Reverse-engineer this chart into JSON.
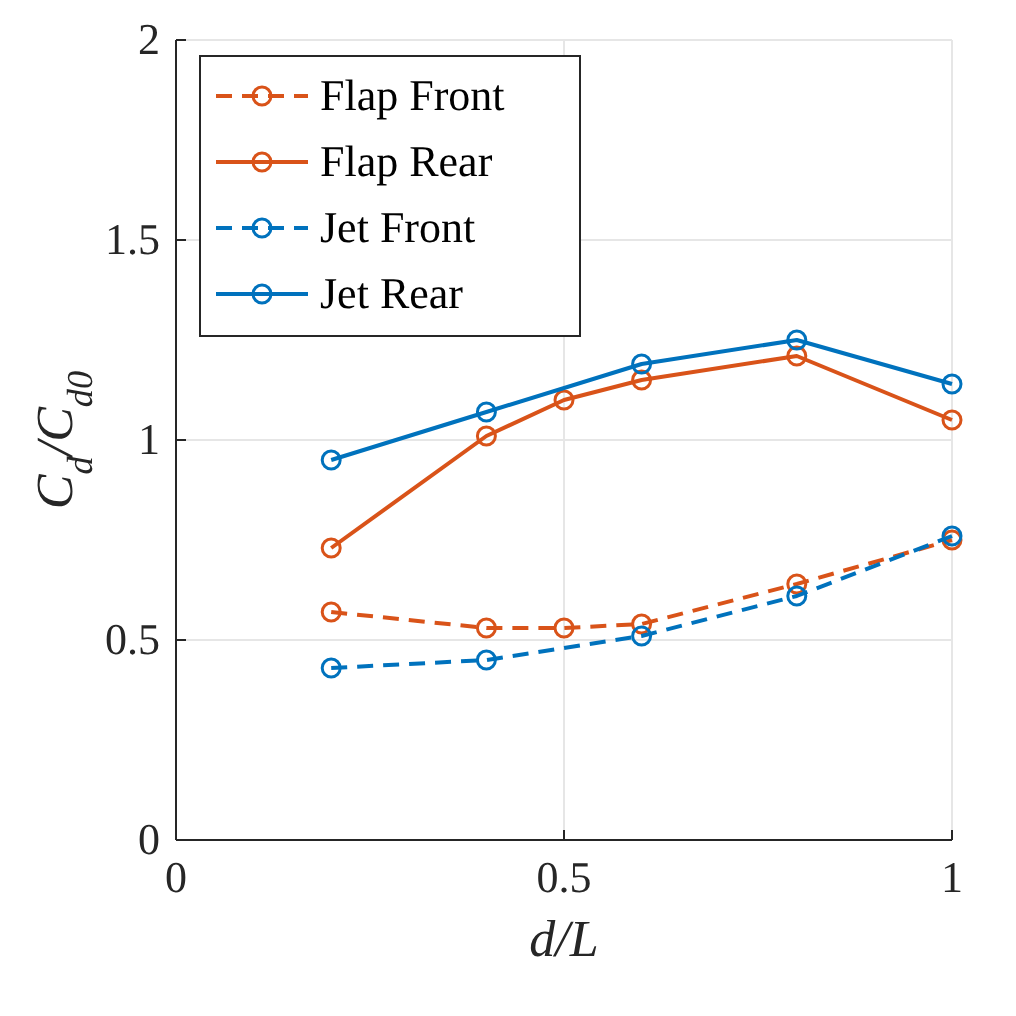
{
  "chart_data": {
    "type": "line",
    "xlabel": "d/L",
    "ylabel": "C$_{d}$/C$_{d0}$",
    "xlim": [
      0,
      1
    ],
    "ylim": [
      0,
      2
    ],
    "xticks": [
      0,
      0.5,
      1
    ],
    "yticks": [
      0,
      0.5,
      1,
      1.5,
      2
    ],
    "grid": true,
    "legend": "top left",
    "marker": "circle",
    "series": [
      {
        "name": "Flap Front",
        "color": "#d95319",
        "line_style": "dashed",
        "x": [
          0.2,
          0.4,
          0.5,
          0.6,
          0.8,
          1.0
        ],
        "values": [
          0.57,
          0.53,
          0.53,
          0.54,
          0.64,
          0.75
        ]
      },
      {
        "name": "Flap Rear",
        "color": "#d95319",
        "line_style": "solid",
        "x": [
          0.2,
          0.4,
          0.5,
          0.6,
          0.8,
          1.0
        ],
        "values": [
          0.73,
          1.01,
          1.1,
          1.15,
          1.21,
          1.05
        ]
      },
      {
        "name": "Jet Front",
        "color": "#0072bd",
        "line_style": "dashed",
        "x": [
          0.2,
          0.4,
          0.6,
          0.8,
          1.0
        ],
        "values": [
          0.43,
          0.45,
          0.51,
          0.61,
          0.76
        ]
      },
      {
        "name": "Jet Rear",
        "color": "#0072bd",
        "line_style": "solid",
        "x": [
          0.2,
          0.4,
          0.6,
          0.8,
          1.0
        ],
        "values": [
          0.95,
          1.07,
          1.19,
          1.25,
          1.14
        ]
      }
    ]
  }
}
